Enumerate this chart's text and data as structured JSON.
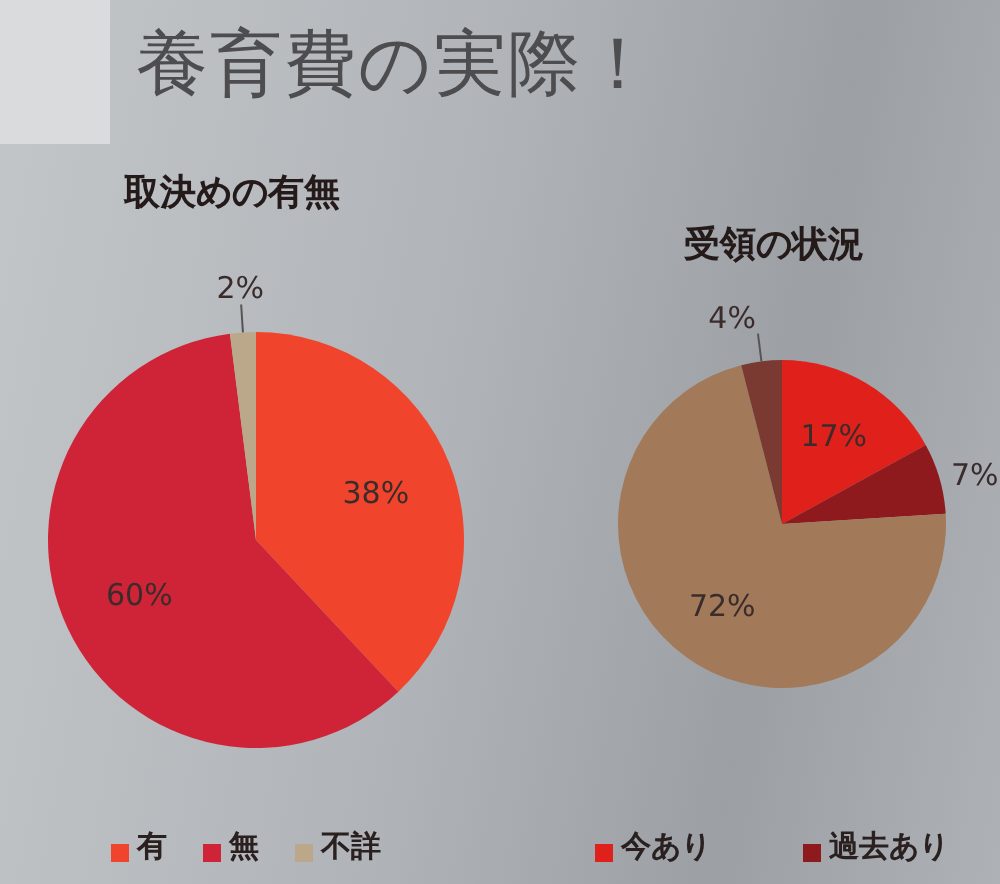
{
  "chart_data": [
    {
      "type": "other",
      "title": "養育費の実際！"
    },
    {
      "type": "pie",
      "title": "取決めの有無",
      "categories": [
        "有",
        "無",
        "不詳"
      ],
      "values": [
        38,
        60,
        2
      ],
      "colors": [
        "#f0452c",
        "#cf2437",
        "#bba88a"
      ],
      "value_labels": [
        "38%",
        "60%",
        "2%"
      ],
      "legend": "bottom"
    },
    {
      "type": "pie",
      "title": "受領の状況",
      "categories": [
        "今あり",
        "過去あり",
        null,
        null
      ],
      "values": [
        17,
        7,
        72,
        4
      ],
      "colors": [
        "#e0201a",
        "#8f1a1e",
        "#a27a5a",
        "#7a3a32"
      ],
      "value_labels": [
        "17%",
        "7%",
        "72%",
        "4%"
      ],
      "legend": "bottom"
    }
  ]
}
